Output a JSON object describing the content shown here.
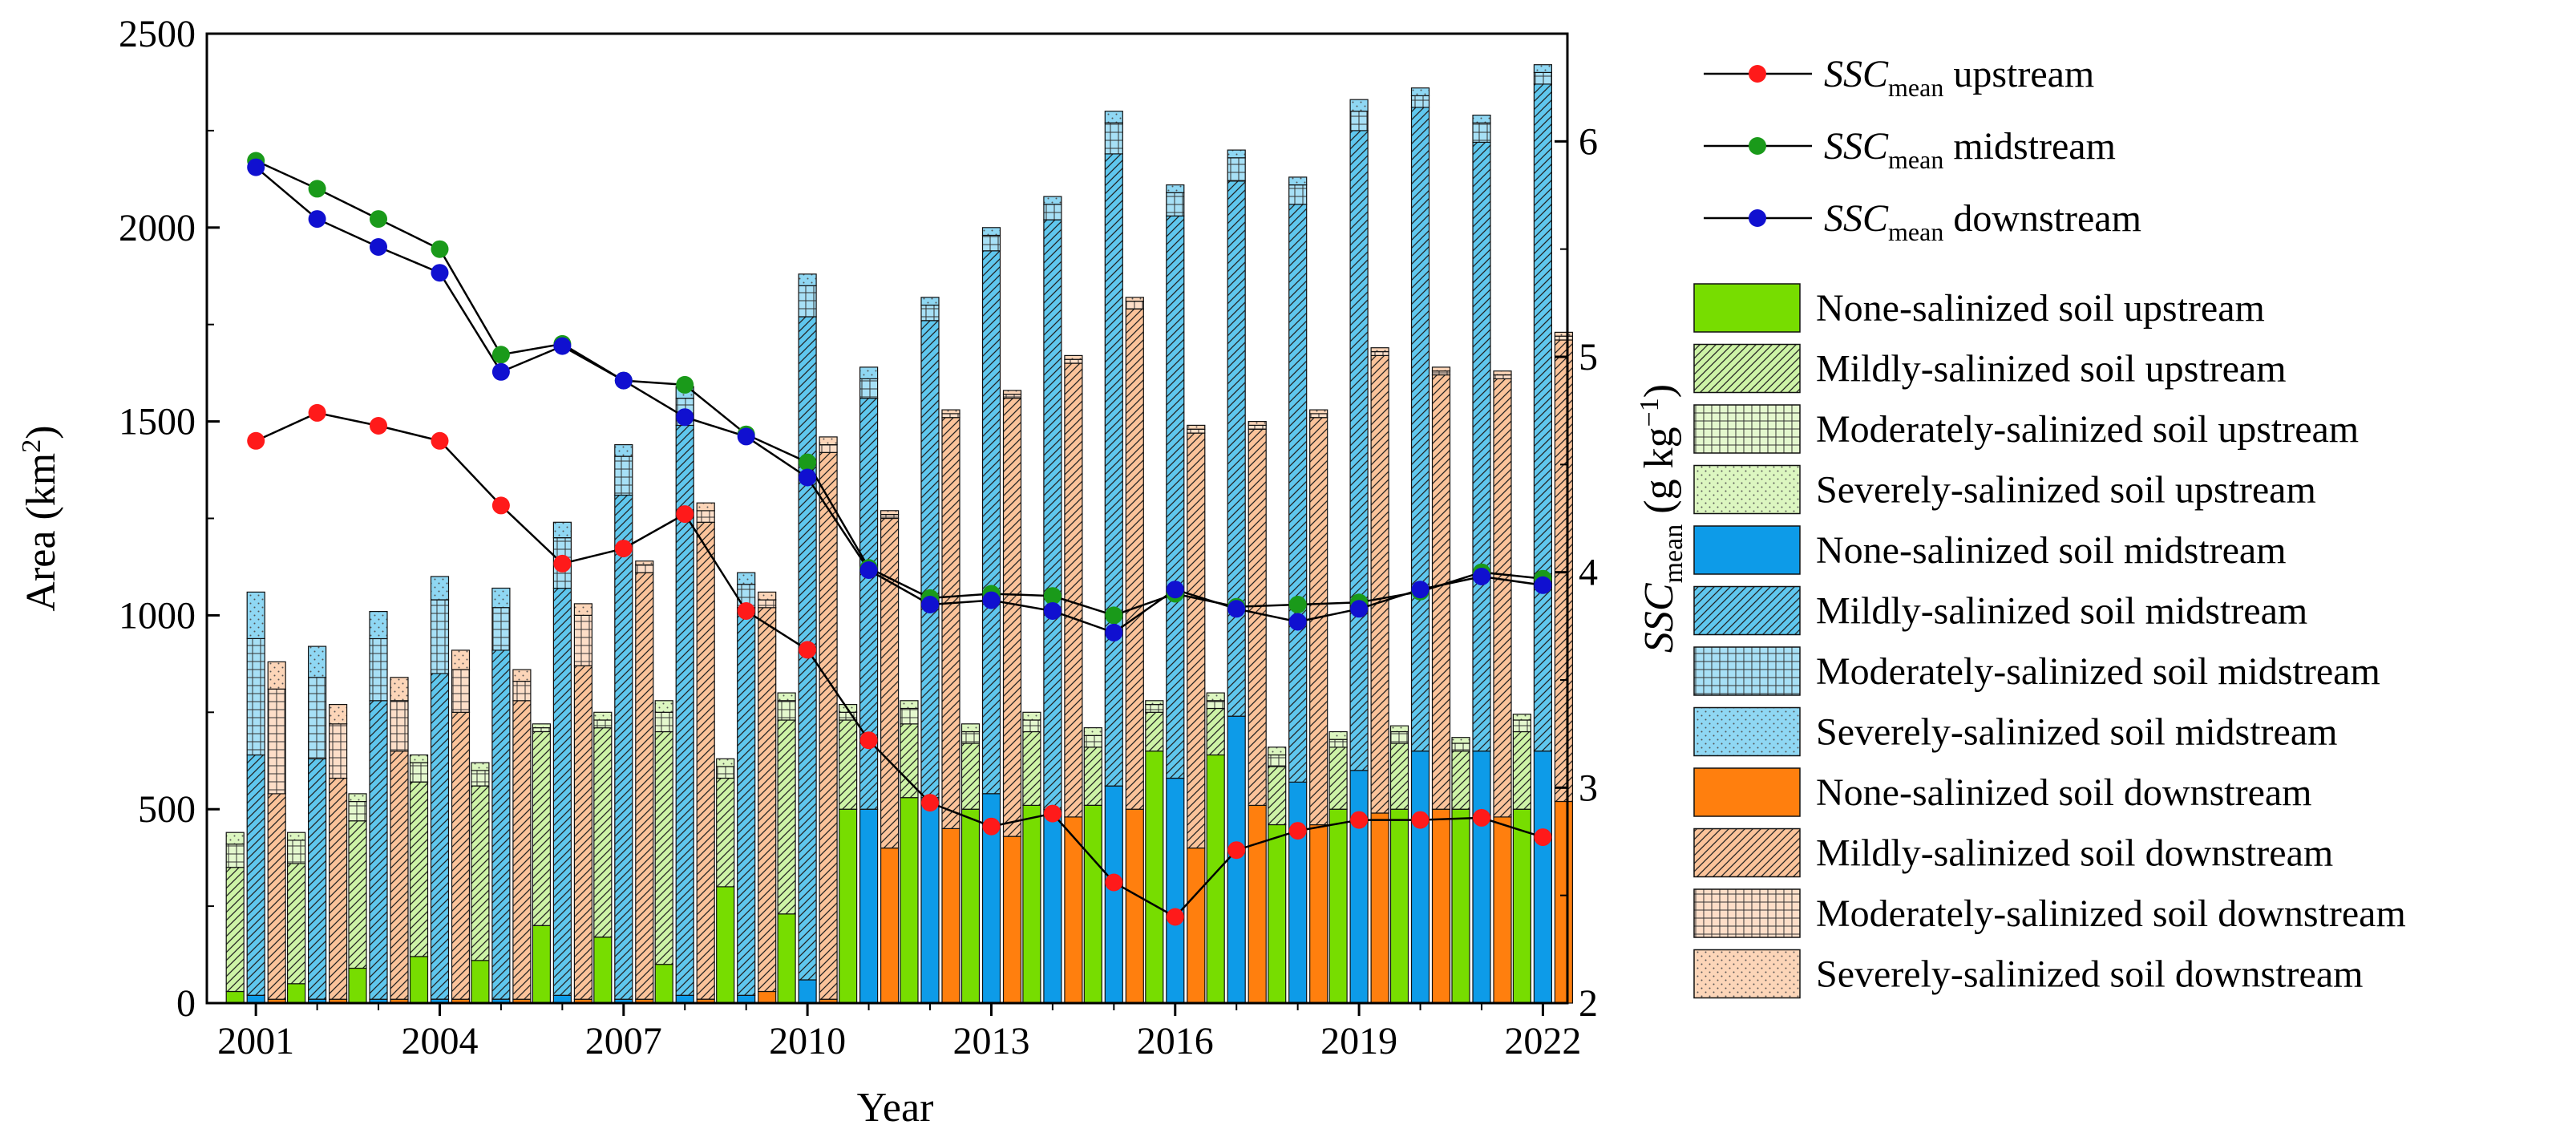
{
  "chart_data": {
    "type": "bar",
    "subtype": "stacked grouped bars with secondary-axis lines",
    "x": [
      "2001",
      "2002",
      "2003",
      "2004",
      "2005",
      "2006",
      "2007",
      "2008",
      "2009",
      "2010",
      "2011",
      "2012",
      "2013",
      "2014",
      "2015",
      "2016",
      "2017",
      "2018",
      "2019",
      "2020",
      "2021",
      "2022"
    ],
    "x_tick_labels": [
      "2001",
      "2004",
      "2007",
      "2010",
      "2013",
      "2016",
      "2019",
      "2022"
    ],
    "xlabel": "Year",
    "ylabel_left": {
      "main": "Area (km",
      "sup": "2",
      "end": ")"
    },
    "ylim_left": [
      0,
      2500
    ],
    "yticks_left": [
      0,
      500,
      1000,
      1500,
      2000,
      2500
    ],
    "ylabel_right": {
      "main": "SSC",
      "sub": "mean",
      "rest": " (g kg",
      "sup": "−1",
      "end": ")"
    },
    "ylim_right": [
      2,
      6.5
    ],
    "yticks_right": [
      2,
      3,
      4,
      5,
      6
    ],
    "groups": [
      "upstream",
      "midstream",
      "downstream"
    ],
    "bar_series": [
      {
        "label": "None-salinized soil upstream",
        "group": "upstream",
        "color": "#77dd00",
        "pattern": "solid",
        "values": [
          30,
          50,
          90,
          120,
          110,
          200,
          170,
          100,
          300,
          230,
          500,
          530,
          500,
          510,
          510,
          650,
          640,
          460,
          500,
          500,
          500,
          500
        ]
      },
      {
        "label": "Mildly-salinized soil upstream",
        "group": "upstream",
        "color": "#77dd00",
        "pattern": "diag",
        "values": [
          320,
          310,
          380,
          450,
          450,
          500,
          540,
          600,
          280,
          500,
          230,
          190,
          170,
          190,
          150,
          100,
          120,
          150,
          160,
          170,
          150,
          200
        ]
      },
      {
        "label": "Moderately-salinized soil upstream",
        "group": "upstream",
        "color": "#77dd00",
        "pattern": "grid",
        "values": [
          60,
          60,
          50,
          50,
          40,
          10,
          20,
          50,
          30,
          50,
          20,
          40,
          30,
          30,
          30,
          20,
          20,
          30,
          20,
          30,
          20,
          30
        ]
      },
      {
        "label": "Severely-salinized soil upstream",
        "group": "upstream",
        "color": "#77dd00",
        "pattern": "dots",
        "values": [
          30,
          20,
          20,
          20,
          20,
          10,
          20,
          30,
          20,
          20,
          20,
          20,
          20,
          20,
          20,
          10,
          20,
          20,
          20,
          15,
          15,
          15
        ]
      },
      {
        "label": "None-salinized soil midstream",
        "group": "midstream",
        "color": "#0d9be8",
        "pattern": "solid",
        "values": [
          20,
          10,
          10,
          10,
          10,
          20,
          10,
          20,
          20,
          60,
          500,
          530,
          540,
          500,
          560,
          580,
          740,
          570,
          600,
          650,
          650,
          650
        ]
      },
      {
        "label": "Mildly-salinized soil midstream",
        "group": "midstream",
        "color": "#0d9be8",
        "pattern": "diag",
        "values": [
          620,
          620,
          770,
          840,
          900,
          1050,
          1300,
          1470,
          1000,
          1710,
          1060,
          1230,
          1400,
          1520,
          1630,
          1450,
          1380,
          1490,
          1650,
          1660,
          1570,
          1720
        ]
      },
      {
        "label": "Moderately-salinized soil midstream",
        "group": "midstream",
        "color": "#0d9be8",
        "pattern": "grid",
        "values": [
          300,
          210,
          160,
          190,
          110,
          130,
          100,
          70,
          60,
          80,
          50,
          40,
          40,
          40,
          80,
          60,
          60,
          50,
          50,
          30,
          50,
          30
        ]
      },
      {
        "label": "Severely-salinized soil midstream",
        "group": "midstream",
        "color": "#0d9be8",
        "pattern": "dots",
        "values": [
          120,
          80,
          70,
          60,
          50,
          40,
          30,
          30,
          30,
          30,
          30,
          20,
          20,
          20,
          30,
          20,
          20,
          20,
          30,
          20,
          20,
          20
        ]
      },
      {
        "label": "None-salinized soil downstream",
        "group": "downstream",
        "color": "#ff7f0e",
        "pattern": "solid",
        "values": [
          10,
          10,
          10,
          10,
          10,
          10,
          10,
          10,
          30,
          10,
          400,
          450,
          430,
          480,
          500,
          400,
          510,
          460,
          490,
          500,
          480,
          520
        ]
      },
      {
        "label": "Mildly-salinized soil downstream",
        "group": "downstream",
        "color": "#ff7f0e",
        "pattern": "diag",
        "values": [
          530,
          570,
          640,
          740,
          770,
          860,
          1100,
          1230,
          990,
          1410,
          850,
          1060,
          1130,
          1170,
          1290,
          1070,
          970,
          1050,
          1180,
          1120,
          1130,
          1190
        ]
      },
      {
        "label": "Moderately-salinized soil downstream",
        "group": "downstream",
        "color": "#ff7f0e",
        "pattern": "grid",
        "values": [
          270,
          140,
          130,
          110,
          50,
          130,
          20,
          30,
          20,
          20,
          10,
          10,
          10,
          10,
          20,
          10,
          10,
          10,
          10,
          10,
          10,
          10
        ]
      },
      {
        "label": "Severely-salinized soil downstream",
        "group": "downstream",
        "color": "#ff7f0e",
        "pattern": "dots",
        "values": [
          70,
          50,
          60,
          50,
          30,
          30,
          10,
          20,
          20,
          20,
          10,
          10,
          10,
          10,
          10,
          10,
          10,
          10,
          10,
          10,
          10,
          10
        ]
      }
    ],
    "line_series": [
      {
        "prefix": "SSC",
        "sub": "mean",
        "suffix": " upstream",
        "color": "#ff1a1a",
        "values": [
          4.61,
          4.74,
          4.68,
          4.61,
          4.31,
          4.04,
          4.11,
          4.27,
          3.82,
          3.64,
          3.22,
          2.93,
          2.82,
          2.88,
          2.56,
          2.4,
          2.71,
          2.8,
          2.85,
          2.85,
          2.86,
          2.77
        ]
      },
      {
        "prefix": "SSC",
        "sub": "mean",
        "suffix": " midstream",
        "color": "#1a9a1a",
        "values": [
          5.91,
          5.78,
          5.64,
          5.5,
          5.01,
          5.06,
          4.89,
          4.87,
          4.64,
          4.51,
          4.02,
          3.88,
          3.9,
          3.89,
          3.8,
          3.9,
          3.84,
          3.85,
          3.86,
          3.91,
          4.0,
          3.97
        ]
      },
      {
        "prefix": "SSC",
        "sub": "mean",
        "suffix": " downstream",
        "color": "#1010d0",
        "values": [
          5.88,
          5.64,
          5.51,
          5.39,
          4.93,
          5.05,
          4.89,
          4.72,
          4.63,
          4.44,
          4.01,
          3.85,
          3.87,
          3.82,
          3.72,
          3.92,
          3.83,
          3.77,
          3.83,
          3.92,
          3.98,
          3.94
        ]
      }
    ],
    "legend_placement": "right",
    "grid": false
  }
}
